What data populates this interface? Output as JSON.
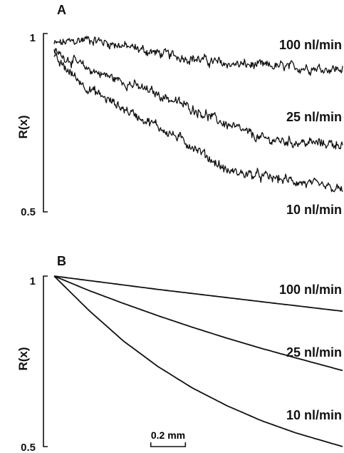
{
  "chart_data": [
    {
      "panel": "A",
      "type": "line",
      "ylabel": "R(x)",
      "ylim": [
        0.5,
        1
      ],
      "yticks": [
        "1",
        "0.5"
      ],
      "x_unit": "mm",
      "xlim": [
        0,
        1.67
      ],
      "series": [
        {
          "name": "100 nl/min",
          "x": [
            0,
            0.2,
            0.4,
            0.6,
            0.8,
            1.0,
            1.2,
            1.4,
            1.67
          ],
          "values": [
            0.97,
            0.985,
            0.965,
            0.945,
            0.93,
            0.915,
            0.91,
            0.905,
            0.9
          ]
        },
        {
          "name": "25 nl/min",
          "x": [
            0,
            0.2,
            0.4,
            0.6,
            0.8,
            1.0,
            1.2,
            1.4,
            1.67
          ],
          "values": [
            0.95,
            0.9,
            0.865,
            0.83,
            0.79,
            0.745,
            0.705,
            0.695,
            0.69
          ]
        },
        {
          "name": "10 nl/min",
          "x": [
            0,
            0.2,
            0.4,
            0.6,
            0.8,
            1.0,
            1.2,
            1.4,
            1.67
          ],
          "values": [
            0.93,
            0.845,
            0.79,
            0.74,
            0.685,
            0.615,
            0.6,
            0.585,
            0.56
          ]
        }
      ]
    },
    {
      "panel": "B",
      "type": "line",
      "ylabel": "R(x)",
      "ylim": [
        0.5,
        1
      ],
      "yticks": [
        "1",
        "0.5"
      ],
      "x_unit": "mm",
      "xlim": [
        0,
        1.67
      ],
      "series": [
        {
          "name": "100 nl/min",
          "x": [
            0,
            0.2,
            0.4,
            0.6,
            0.8,
            1.0,
            1.2,
            1.4,
            1.67
          ],
          "values": [
            1.0,
            0.987,
            0.974,
            0.961,
            0.949,
            0.937,
            0.925,
            0.913,
            0.897
          ]
        },
        {
          "name": "25 nl/min",
          "x": [
            0,
            0.2,
            0.4,
            0.6,
            0.8,
            1.0,
            1.2,
            1.4,
            1.67
          ],
          "values": [
            1.0,
            0.958,
            0.92,
            0.884,
            0.85,
            0.818,
            0.788,
            0.76,
            0.723
          ]
        },
        {
          "name": "10 nl/min",
          "x": [
            0,
            0.2,
            0.4,
            0.6,
            0.8,
            1.0,
            1.2,
            1.4,
            1.67
          ],
          "values": [
            1.0,
            0.9,
            0.81,
            0.735,
            0.672,
            0.62,
            0.576,
            0.54,
            0.5
          ]
        }
      ]
    }
  ],
  "scale_bar": {
    "label": "0.2 mm",
    "length": 0.2
  }
}
